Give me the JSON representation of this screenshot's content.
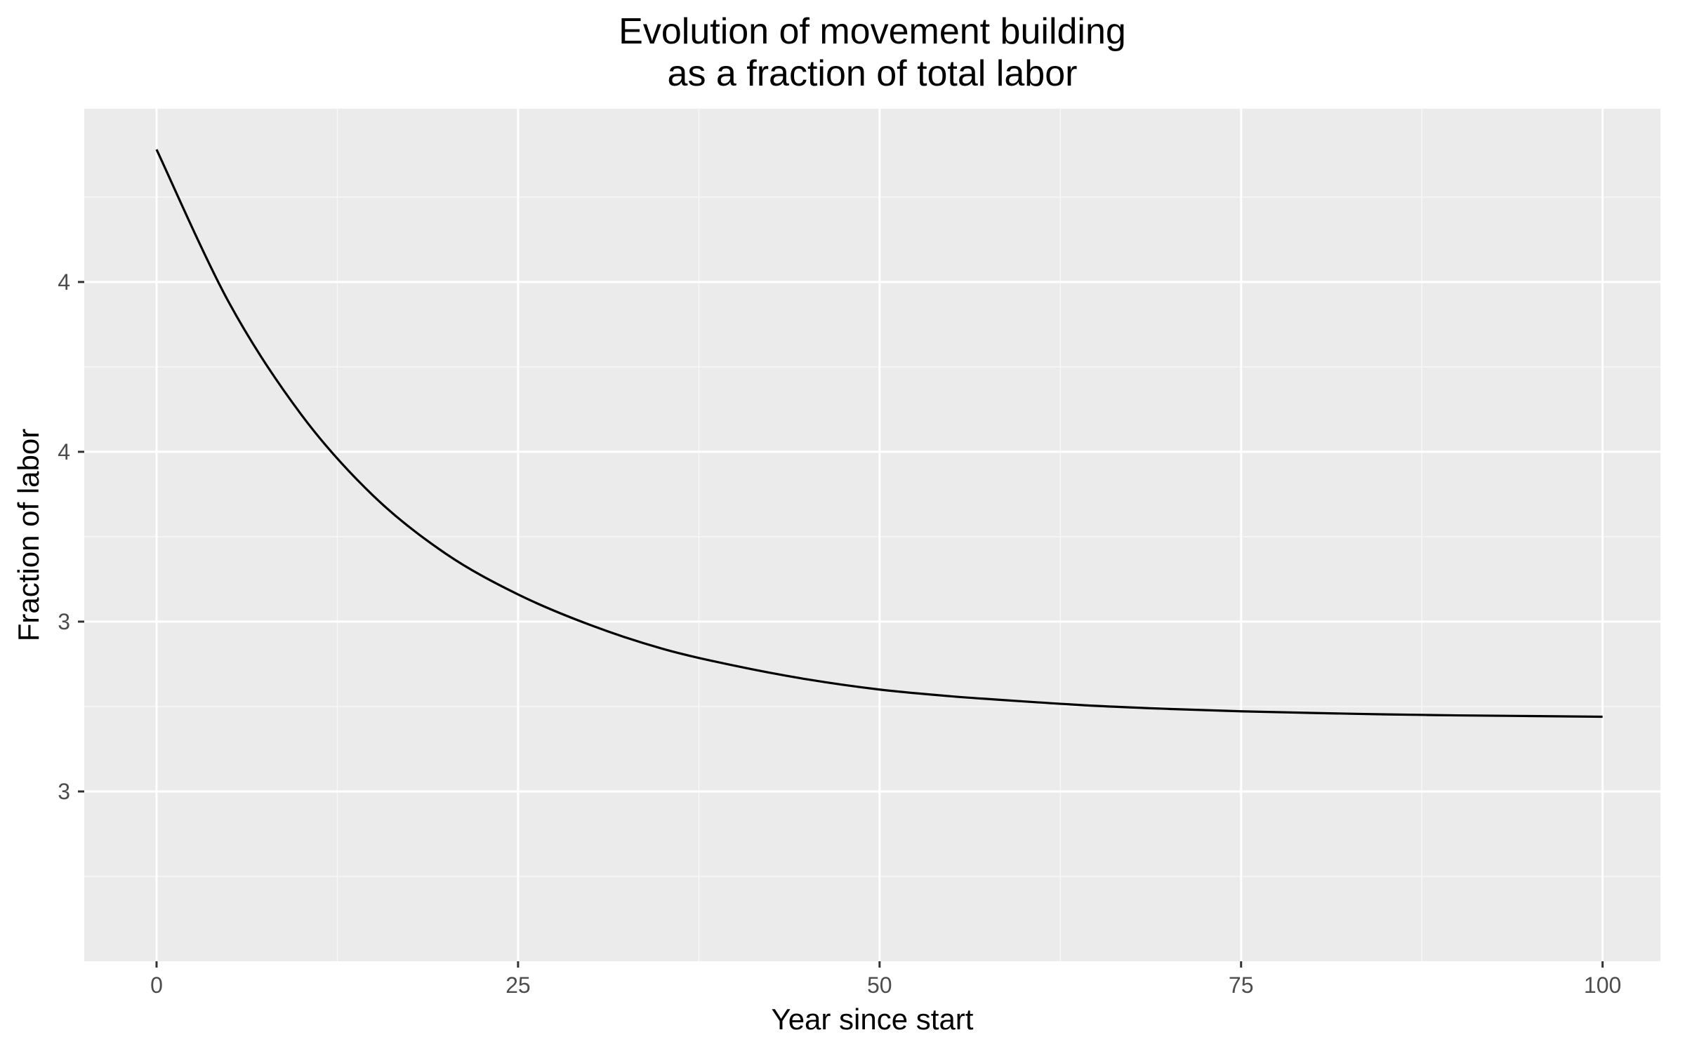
{
  "chart_data": {
    "type": "line",
    "title": "Evolution of movement building\nas a fraction of total labor",
    "title_lines": [
      "Evolution of movement building",
      "as a fraction of total labor"
    ],
    "xlabel": "Year since start",
    "ylabel": "Fraction of labor",
    "xlim": [
      -5,
      104
    ],
    "ylim": [
      2.0,
      4.51
    ],
    "x_ticks": [
      0,
      25,
      50,
      75,
      100
    ],
    "x_tick_labels": [
      "0",
      "25",
      "50",
      "75",
      "100"
    ],
    "y_ticks": [
      2.5,
      3.0,
      3.5,
      4.0
    ],
    "y_tick_labels": [
      "3",
      "3",
      "4",
      "4"
    ],
    "grid": true,
    "legend": "none",
    "colors": {
      "panel_background": "#ebebeb",
      "grid_major": "#ffffff",
      "grid_minor": "#f7f7f7",
      "line": "#000000"
    },
    "series": [
      {
        "x": [
          0,
          5,
          10,
          15,
          20,
          25,
          30,
          35,
          40,
          45,
          50,
          55,
          60,
          65,
          70,
          75,
          80,
          85,
          90,
          95,
          100
        ],
        "y": [
          4.39,
          3.94,
          3.61,
          3.37,
          3.2,
          3.08,
          2.99,
          2.92,
          2.87,
          2.83,
          2.8,
          2.78,
          2.765,
          2.752,
          2.743,
          2.736,
          2.731,
          2.727,
          2.724,
          2.722,
          2.72
        ]
      }
    ]
  }
}
